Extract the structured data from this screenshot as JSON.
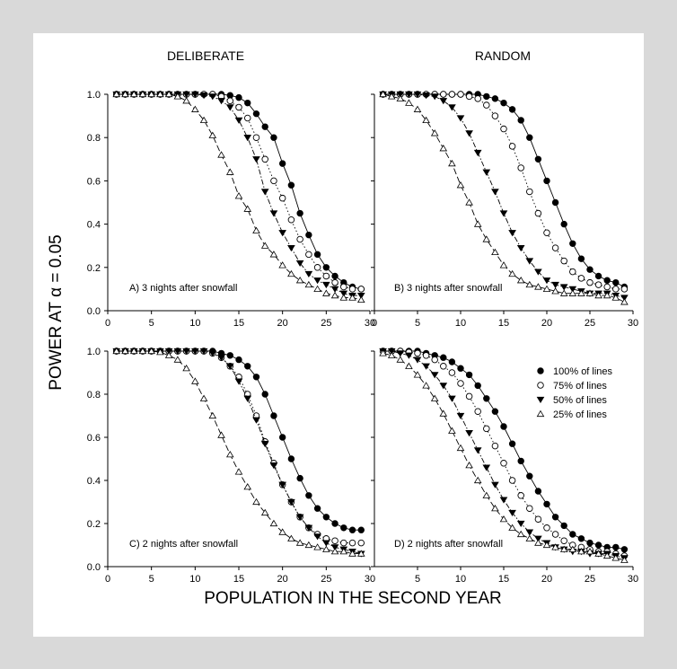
{
  "figure": {
    "column_titles": [
      "DELIBERATE",
      "RANDOM"
    ],
    "ylabel": "POWER AT α = 0.05",
    "xlabel": "POPULATION IN THE SECOND YEAR",
    "legend": [
      {
        "label": "100% of lines",
        "marker": "filled-circle"
      },
      {
        "label": "75% of lines",
        "marker": "open-circle"
      },
      {
        "label": "50% of lines",
        "marker": "filled-triangle-down"
      },
      {
        "label": "25% of lines",
        "marker": "open-triangle-up"
      }
    ],
    "colors": {
      "background": "#d9d9d9",
      "panel": "#ffffff",
      "ink": "#000000"
    }
  },
  "chart_data": [
    {
      "type": "line",
      "panel_label": "A) 3 nights after snowfall",
      "column": "DELIBERATE",
      "x": [
        1,
        2,
        3,
        4,
        5,
        6,
        7,
        8,
        9,
        10,
        11,
        12,
        13,
        14,
        15,
        16,
        17,
        18,
        19,
        20,
        21,
        22,
        23,
        24,
        25,
        26,
        27,
        28,
        29
      ],
      "xticks": [
        0,
        5,
        10,
        15,
        20,
        25,
        30
      ],
      "yticks": [
        0.0,
        0.2,
        0.4,
        0.6,
        0.8,
        1.0
      ],
      "xlim": [
        0,
        30
      ],
      "ylim": [
        0,
        1
      ],
      "series": [
        {
          "name": "100% of lines",
          "marker": "filled-circle",
          "line": "solid",
          "values": [
            1.0,
            1.0,
            1.0,
            1.0,
            1.0,
            1.0,
            1.0,
            1.0,
            1.0,
            1.0,
            1.0,
            1.0,
            1.0,
            0.995,
            0.985,
            0.96,
            0.91,
            0.85,
            0.8,
            0.68,
            0.58,
            0.45,
            0.35,
            0.26,
            0.2,
            0.16,
            0.13,
            0.11,
            0.1
          ]
        },
        {
          "name": "75% of lines",
          "marker": "open-circle",
          "line": "dotted",
          "values": [
            1.0,
            1.0,
            1.0,
            1.0,
            1.0,
            1.0,
            1.0,
            1.0,
            1.0,
            1.0,
            1.0,
            1.0,
            0.99,
            0.97,
            0.94,
            0.89,
            0.8,
            0.7,
            0.6,
            0.52,
            0.42,
            0.33,
            0.26,
            0.2,
            0.16,
            0.13,
            0.11,
            0.1,
            0.1
          ]
        },
        {
          "name": "50% of lines",
          "marker": "filled-triangle-down",
          "line": "dash-dot",
          "values": [
            1.0,
            1.0,
            1.0,
            1.0,
            1.0,
            1.0,
            1.0,
            1.0,
            1.0,
            1.0,
            0.995,
            0.99,
            0.97,
            0.94,
            0.88,
            0.8,
            0.7,
            0.55,
            0.45,
            0.36,
            0.29,
            0.22,
            0.17,
            0.14,
            0.12,
            0.1,
            0.08,
            0.07,
            0.07
          ]
        },
        {
          "name": "25% of lines",
          "marker": "open-triangle-up",
          "line": "long-dash",
          "values": [
            1.0,
            1.0,
            1.0,
            1.0,
            1.0,
            1.0,
            1.0,
            0.99,
            0.97,
            0.93,
            0.88,
            0.81,
            0.72,
            0.64,
            0.53,
            0.47,
            0.37,
            0.3,
            0.26,
            0.21,
            0.17,
            0.14,
            0.12,
            0.1,
            0.08,
            0.07,
            0.06,
            0.06,
            0.05
          ]
        }
      ]
    },
    {
      "type": "line",
      "panel_label": "B) 3 nights after snowfall",
      "column": "RANDOM",
      "x": [
        1,
        2,
        3,
        4,
        5,
        6,
        7,
        8,
        9,
        10,
        11,
        12,
        13,
        14,
        15,
        16,
        17,
        18,
        19,
        20,
        21,
        22,
        23,
        24,
        25,
        26,
        27,
        28,
        29
      ],
      "xticks": [
        0,
        5,
        10,
        15,
        20,
        25,
        30
      ],
      "yticks": [
        0.0,
        0.2,
        0.4,
        0.6,
        0.8,
        1.0
      ],
      "xlim": [
        0,
        30
      ],
      "ylim": [
        0,
        1
      ],
      "series": [
        {
          "name": "100% of lines",
          "marker": "filled-circle",
          "line": "solid",
          "values": [
            1.0,
            1.0,
            1.0,
            1.0,
            1.0,
            1.0,
            1.0,
            1.0,
            1.0,
            1.0,
            1.0,
            1.0,
            0.99,
            0.98,
            0.96,
            0.93,
            0.88,
            0.8,
            0.7,
            0.6,
            0.5,
            0.4,
            0.31,
            0.24,
            0.19,
            0.16,
            0.14,
            0.13,
            0.11
          ]
        },
        {
          "name": "75% of lines",
          "marker": "open-circle",
          "line": "dotted",
          "values": [
            1.0,
            1.0,
            1.0,
            1.0,
            1.0,
            1.0,
            1.0,
            1.0,
            1.0,
            1.0,
            0.99,
            0.98,
            0.95,
            0.9,
            0.84,
            0.76,
            0.66,
            0.55,
            0.45,
            0.36,
            0.29,
            0.23,
            0.18,
            0.15,
            0.13,
            0.12,
            0.11,
            0.1,
            0.1
          ]
        },
        {
          "name": "50% of lines",
          "marker": "filled-triangle-down",
          "line": "dash-dot",
          "values": [
            1.0,
            1.0,
            1.0,
            1.0,
            1.0,
            0.995,
            0.99,
            0.97,
            0.94,
            0.89,
            0.82,
            0.73,
            0.64,
            0.55,
            0.45,
            0.36,
            0.29,
            0.23,
            0.18,
            0.14,
            0.12,
            0.11,
            0.1,
            0.09,
            0.08,
            0.08,
            0.08,
            0.07,
            0.06
          ]
        },
        {
          "name": "25% of lines",
          "marker": "open-triangle-up",
          "line": "long-dash",
          "values": [
            1.0,
            0.99,
            0.98,
            0.96,
            0.93,
            0.88,
            0.82,
            0.75,
            0.68,
            0.58,
            0.5,
            0.4,
            0.33,
            0.27,
            0.21,
            0.17,
            0.14,
            0.12,
            0.11,
            0.1,
            0.09,
            0.08,
            0.08,
            0.08,
            0.08,
            0.07,
            0.07,
            0.06,
            0.04
          ]
        }
      ]
    },
    {
      "type": "line",
      "panel_label": "C) 2 nights after snowfall",
      "column": "DELIBERATE",
      "x": [
        1,
        2,
        3,
        4,
        5,
        6,
        7,
        8,
        9,
        10,
        11,
        12,
        13,
        14,
        15,
        16,
        17,
        18,
        19,
        20,
        21,
        22,
        23,
        24,
        25,
        26,
        27,
        28,
        29
      ],
      "xticks": [
        0,
        5,
        10,
        15,
        20,
        25,
        30
      ],
      "yticks": [
        0.0,
        0.2,
        0.4,
        0.6,
        0.8,
        1.0
      ],
      "xlim": [
        0,
        30
      ],
      "ylim": [
        0,
        1
      ],
      "series": [
        {
          "name": "100% of lines",
          "marker": "filled-circle",
          "line": "solid",
          "values": [
            1.0,
            1.0,
            1.0,
            1.0,
            1.0,
            1.0,
            1.0,
            1.0,
            1.0,
            1.0,
            1.0,
            1.0,
            0.99,
            0.98,
            0.96,
            0.93,
            0.88,
            0.8,
            0.7,
            0.6,
            0.5,
            0.41,
            0.33,
            0.27,
            0.23,
            0.2,
            0.18,
            0.17,
            0.17
          ]
        },
        {
          "name": "75% of lines",
          "marker": "open-circle",
          "line": "dotted",
          "values": [
            1.0,
            1.0,
            1.0,
            1.0,
            1.0,
            1.0,
            1.0,
            1.0,
            1.0,
            1.0,
            1.0,
            0.99,
            0.97,
            0.93,
            0.88,
            0.8,
            0.7,
            0.58,
            0.48,
            0.38,
            0.3,
            0.23,
            0.18,
            0.15,
            0.13,
            0.12,
            0.11,
            0.11,
            0.11
          ]
        },
        {
          "name": "50% of lines",
          "marker": "filled-triangle-down",
          "line": "dash-dot",
          "values": [
            1.0,
            1.0,
            1.0,
            1.0,
            1.0,
            1.0,
            1.0,
            1.0,
            1.0,
            1.0,
            1.0,
            0.99,
            0.97,
            0.93,
            0.86,
            0.78,
            0.68,
            0.57,
            0.47,
            0.38,
            0.3,
            0.23,
            0.18,
            0.14,
            0.11,
            0.09,
            0.08,
            0.07,
            0.06
          ]
        },
        {
          "name": "25% of lines",
          "marker": "open-triangle-up",
          "line": "long-dash",
          "values": [
            1.0,
            1.0,
            1.0,
            1.0,
            1.0,
            0.995,
            0.98,
            0.96,
            0.92,
            0.86,
            0.78,
            0.7,
            0.61,
            0.52,
            0.44,
            0.37,
            0.3,
            0.25,
            0.2,
            0.16,
            0.13,
            0.11,
            0.1,
            0.09,
            0.08,
            0.07,
            0.07,
            0.06,
            0.06
          ]
        }
      ]
    },
    {
      "type": "line",
      "panel_label": "D) 2 nights after snowfall",
      "column": "RANDOM",
      "x": [
        1,
        2,
        3,
        4,
        5,
        6,
        7,
        8,
        9,
        10,
        11,
        12,
        13,
        14,
        15,
        16,
        17,
        18,
        19,
        20,
        21,
        22,
        23,
        24,
        25,
        26,
        27,
        28,
        29
      ],
      "xticks": [
        5,
        10,
        15,
        20,
        25,
        30
      ],
      "yticks": [
        0.0,
        0.2,
        0.4,
        0.6,
        0.8,
        1.0
      ],
      "xlim": [
        0,
        30
      ],
      "ylim": [
        0,
        1
      ],
      "series": [
        {
          "name": "100% of lines",
          "marker": "filled-circle",
          "line": "solid",
          "values": [
            1.0,
            1.0,
            1.0,
            1.0,
            1.0,
            0.99,
            0.98,
            0.97,
            0.95,
            0.92,
            0.89,
            0.84,
            0.78,
            0.72,
            0.65,
            0.57,
            0.49,
            0.42,
            0.35,
            0.29,
            0.23,
            0.19,
            0.15,
            0.13,
            0.11,
            0.1,
            0.09,
            0.09,
            0.08
          ]
        },
        {
          "name": "75% of lines",
          "marker": "open-circle",
          "line": "dotted",
          "values": [
            1.0,
            1.0,
            1.0,
            0.995,
            0.99,
            0.98,
            0.96,
            0.93,
            0.9,
            0.85,
            0.79,
            0.72,
            0.64,
            0.56,
            0.48,
            0.4,
            0.33,
            0.27,
            0.22,
            0.18,
            0.15,
            0.12,
            0.1,
            0.09,
            0.08,
            0.07,
            0.07,
            0.06,
            0.05
          ]
        },
        {
          "name": "50% of lines",
          "marker": "filled-triangle-down",
          "line": "dash-dot",
          "values": [
            1.0,
            1.0,
            0.99,
            0.98,
            0.96,
            0.93,
            0.89,
            0.84,
            0.78,
            0.7,
            0.62,
            0.54,
            0.46,
            0.38,
            0.31,
            0.25,
            0.2,
            0.16,
            0.13,
            0.11,
            0.09,
            0.08,
            0.07,
            0.07,
            0.06,
            0.06,
            0.06,
            0.05,
            0.04
          ]
        },
        {
          "name": "25% of lines",
          "marker": "open-triangle-up",
          "line": "long-dash",
          "values": [
            0.99,
            0.98,
            0.96,
            0.93,
            0.89,
            0.84,
            0.78,
            0.71,
            0.63,
            0.55,
            0.47,
            0.4,
            0.33,
            0.27,
            0.22,
            0.18,
            0.15,
            0.13,
            0.11,
            0.1,
            0.09,
            0.08,
            0.08,
            0.07,
            0.07,
            0.06,
            0.05,
            0.04,
            0.03
          ]
        }
      ]
    }
  ]
}
